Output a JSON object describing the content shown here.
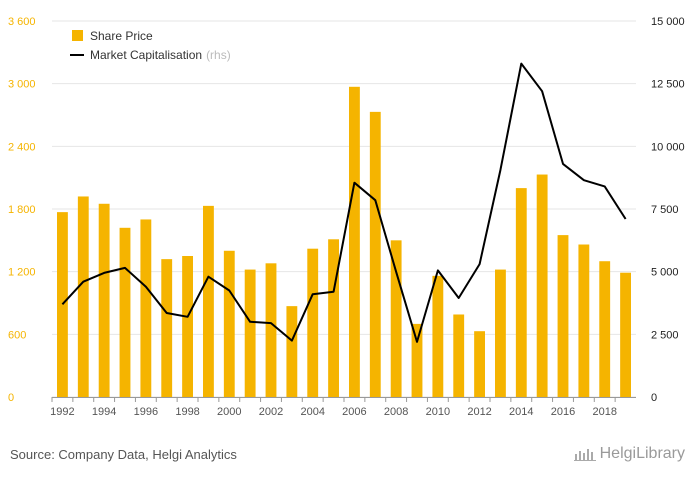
{
  "chart_data": {
    "type": "bar",
    "categories": [
      "1992",
      "1993",
      "1994",
      "1995",
      "1996",
      "1997",
      "1998",
      "1999",
      "2000",
      "2001",
      "2002",
      "2003",
      "2004",
      "2005",
      "2006",
      "2007",
      "2008",
      "2009",
      "2010",
      "2011",
      "2012",
      "2013",
      "2014",
      "2015",
      "2016",
      "2017",
      "2018",
      "2019"
    ],
    "x_tick_labels": [
      "1992",
      "1994",
      "1996",
      "1998",
      "2000",
      "2002",
      "2004",
      "2006",
      "2008",
      "2010",
      "2012",
      "2014",
      "2016",
      "2018"
    ],
    "series": [
      {
        "name": "Share Price",
        "type": "bar",
        "axis": "left",
        "color": "#f5b400",
        "values": [
          1770,
          1920,
          1850,
          1620,
          1700,
          1320,
          1350,
          1830,
          1400,
          1220,
          1280,
          870,
          1420,
          1510,
          2970,
          2730,
          1500,
          700,
          1160,
          790,
          630,
          1220,
          2000,
          2130,
          1550,
          1460,
          1300,
          1190
        ]
      },
      {
        "name": "Market Capitalisation",
        "name_suffix": "(rhs)",
        "type": "line",
        "axis": "right",
        "color": "#000000",
        "values": [
          3700,
          4600,
          4950,
          5150,
          4400,
          3350,
          3200,
          4800,
          4250,
          3000,
          2950,
          2250,
          4100,
          4200,
          8550,
          7850,
          5000,
          2200,
          5050,
          3950,
          5300,
          9050,
          13300,
          12200,
          9300,
          8650,
          8400,
          7100
        ]
      }
    ],
    "y_left": {
      "lim": [
        0,
        3600
      ],
      "ticks": [
        "0",
        "600",
        "1 200",
        "1 800",
        "2 400",
        "3 000",
        "3 600"
      ],
      "tick_values": [
        0,
        600,
        1200,
        1800,
        2400,
        3000,
        3600
      ],
      "color": "#f5b400"
    },
    "y_right": {
      "lim": [
        0,
        15000
      ],
      "ticks": [
        "0",
        "2 500",
        "5 000",
        "7 500",
        "10 000",
        "12 500",
        "15 000"
      ],
      "tick_values": [
        0,
        2500,
        5000,
        7500,
        10000,
        12500,
        15000
      ]
    },
    "legend": {
      "placement": "top-left"
    },
    "grid": true
  },
  "footer": {
    "source": "Source: Company Data, Helgi Analytics",
    "brand": "HelgiLibrary"
  }
}
